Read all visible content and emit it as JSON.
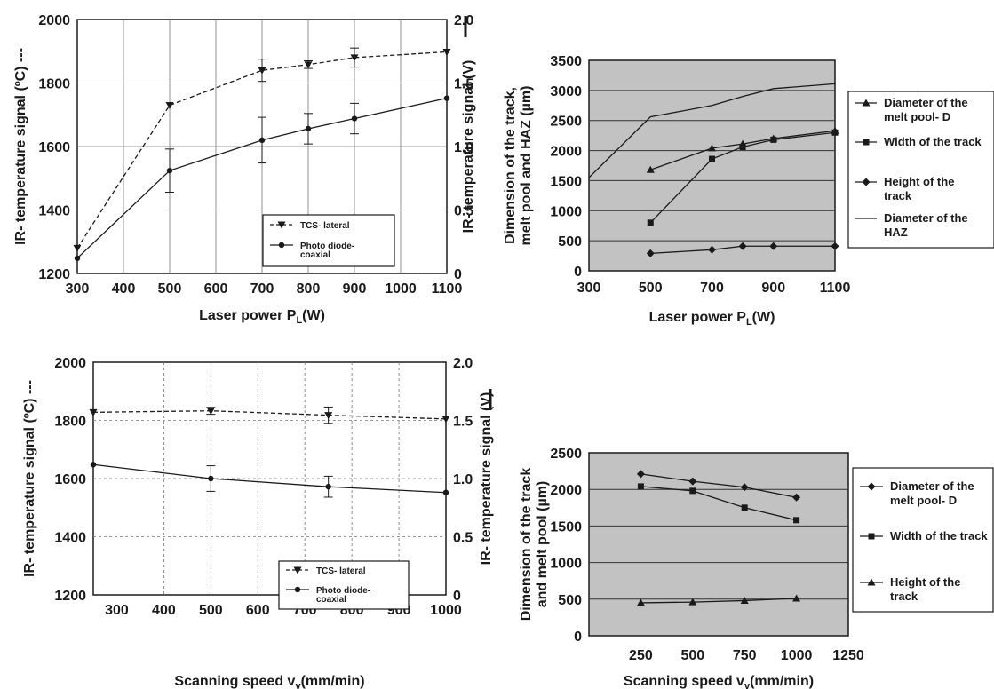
{
  "colors": {
    "panel_gray": "#c2c2c2",
    "ink": "#1a1a1a",
    "grid": "#555555"
  },
  "chart_data": [
    {
      "type": "line",
      "xlabel": "Laser power P",
      "xlabel_sub": "L",
      "xlabel_tail": "(W)",
      "ylabel": "IR- temperature signal (ºC) ---",
      "y2label": "IR- temperature signal (V)",
      "xlim": [
        300,
        1100
      ],
      "ylim": [
        1200,
        2000
      ],
      "y2lim": [
        0,
        2.0
      ],
      "xticks": [
        "300",
        "400",
        "500",
        "600",
        "700",
        "800",
        "900",
        "1000",
        "1100"
      ],
      "yticks": [
        "1200",
        "1400",
        "1600",
        "1800",
        "2000"
      ],
      "y2ticks": [
        "0",
        "0.5",
        "1.0",
        "1.5",
        "2.0"
      ],
      "grid": true,
      "legend": "bottom-center",
      "series": [
        {
          "name": "TCS- lateral",
          "style": "dashed",
          "marker": "triangle-down",
          "x": [
            300,
            500,
            700,
            800,
            900,
            1100
          ],
          "y": [
            1280,
            1730,
            1840,
            1858,
            1880,
            1898
          ],
          "err": [
            0,
            0,
            35,
            12,
            30,
            0
          ]
        },
        {
          "name": "Photo diode-\ncoaxial",
          "style": "solid",
          "marker": "circle",
          "axis": "y2",
          "x": [
            300,
            500,
            700,
            800,
            900,
            1100
          ],
          "y": [
            0.12,
            0.81,
            1.05,
            1.14,
            1.22,
            1.38
          ],
          "err": [
            0,
            0.17,
            0.18,
            0.12,
            0.12,
            0
          ]
        }
      ]
    },
    {
      "type": "line",
      "xlabel": "Laser power P",
      "xlabel_sub": "L",
      "xlabel_tail": "(W)",
      "ylabel": "Dimension of the track,\nmelt pool and HAZ (µm)",
      "xlim": [
        300,
        1100
      ],
      "ylim": [
        0,
        3500
      ],
      "xticks": [
        "300",
        "500",
        "700",
        "900",
        "1100"
      ],
      "yticks": [
        "0",
        "500",
        "1000",
        "1500",
        "2000",
        "2500",
        "3000",
        "3500"
      ],
      "grid": true,
      "legend": "right",
      "series": [
        {
          "name": "Diameter of the\nmelt pool- D",
          "marker": "triangle",
          "x": [
            500,
            700,
            800,
            900,
            1100
          ],
          "y": [
            1680,
            2040,
            2110,
            2200,
            2330
          ]
        },
        {
          "name": "Width of the track",
          "marker": "square",
          "x": [
            500,
            700,
            800,
            900,
            1100
          ],
          "y": [
            800,
            1860,
            2060,
            2180,
            2300
          ]
        },
        {
          "name": "Height of the\ntrack",
          "marker": "diamond",
          "x": [
            500,
            700,
            800,
            900,
            1100
          ],
          "y": [
            290,
            350,
            410,
            410,
            410
          ]
        },
        {
          "name": "Diameter of the\nHAZ",
          "marker": "none",
          "x": [
            300,
            500,
            700,
            800,
            900,
            1100
          ],
          "y": [
            1550,
            2560,
            2750,
            2900,
            3030,
            3110
          ]
        }
      ]
    },
    {
      "type": "line",
      "xlabel": "Scanning speed v",
      "xlabel_sub": "v",
      "xlabel_tail": "(mm/min)",
      "ylabel": "IR- temperature signal (ºC) ---",
      "y2label": "IR- temperature signal (V)",
      "xlim": [
        250,
        1000
      ],
      "ylim": [
        1200,
        2000
      ],
      "y2lim": [
        0,
        2.0
      ],
      "xticks": [
        "300",
        "400",
        "500",
        "600",
        "700",
        "800",
        "900",
        "1000"
      ],
      "yticks": [
        "1200",
        "1400",
        "1600",
        "1800",
        "2000"
      ],
      "y2ticks": [
        "0",
        "0.5",
        "1.0",
        "1.5",
        "2.0"
      ],
      "grid": true,
      "legend": "bottom-right",
      "series": [
        {
          "name": "TCS- lateral",
          "style": "dashed",
          "marker": "triangle-down",
          "x": [
            250,
            500,
            750,
            1000
          ],
          "y": [
            1828,
            1833,
            1818,
            1805
          ],
          "err": [
            0,
            12,
            28,
            0
          ]
        },
        {
          "name": "Photo diode-\ncoaxial",
          "style": "solid",
          "marker": "circle",
          "axis": "y2",
          "x": [
            250,
            500,
            750,
            1000
          ],
          "y": [
            1.12,
            1.0,
            0.93,
            0.88
          ],
          "err": [
            0,
            0.11,
            0.09,
            0
          ]
        }
      ]
    },
    {
      "type": "line",
      "xlabel": "Scanning speed v",
      "xlabel_sub": "v",
      "xlabel_tail": "(mm/min)",
      "ylabel": "Dimension of the track\nand melt pool (µm)",
      "xlim": [
        0,
        1250
      ],
      "ylim": [
        0,
        2500
      ],
      "xticks": [
        "250",
        "500",
        "750",
        "1000",
        "1250"
      ],
      "yticks": [
        "0",
        "500",
        "1000",
        "1500",
        "2000",
        "2500"
      ],
      "grid": true,
      "legend": "right",
      "series": [
        {
          "name": "Diameter of the\nmelt pool- D",
          "marker": "diamond",
          "x": [
            250,
            500,
            750,
            1000
          ],
          "y": [
            2210,
            2110,
            2030,
            1890
          ]
        },
        {
          "name": "Width of the track",
          "marker": "square",
          "x": [
            250,
            500,
            750,
            1000
          ],
          "y": [
            2040,
            1980,
            1750,
            1580
          ]
        },
        {
          "name": "Height of the\ntrack",
          "marker": "triangle",
          "x": [
            250,
            500,
            750,
            1000
          ],
          "y": [
            450,
            460,
            480,
            510
          ]
        }
      ]
    }
  ]
}
